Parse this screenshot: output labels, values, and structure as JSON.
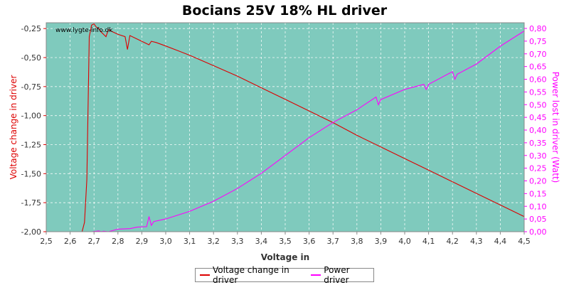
{
  "chart_data": {
    "type": "line",
    "title": "Bocians 25V 18% HL driver",
    "watermark": "www.lygte-info.dk",
    "xlabel": "Voltage in",
    "ylabel_left": "Voltage change in driver",
    "ylabel_right": "Power lost in driver (Watt)",
    "xlim": [
      2.5,
      4.5
    ],
    "ylim_left": [
      -2.0,
      -0.2
    ],
    "ylim_right": [
      0.0,
      0.8
    ],
    "x_ticks": [
      "2,5",
      "2,6",
      "2,7",
      "2,8",
      "2,9",
      "3,0",
      "3,1",
      "3,2",
      "3,3",
      "3,4",
      "3,5",
      "3,6",
      "3,7",
      "3,8",
      "3,9",
      "4,0",
      "4,1",
      "4,2",
      "4,3",
      "4,4",
      "4,5"
    ],
    "y_left_ticks": [
      "-0,25",
      "-0,50",
      "-0,75",
      "-1,00",
      "-1,25",
      "-1,50",
      "-1,75",
      "-2,00"
    ],
    "y_left_tick_values": [
      -0.25,
      -0.5,
      -0.75,
      -1.0,
      -1.25,
      -1.5,
      -1.75,
      -2.0
    ],
    "y_right_ticks": [
      "0,80",
      "0,75",
      "0,70",
      "0,65",
      "0,60",
      "0,55",
      "0,50",
      "0,45",
      "0,40",
      "0,35",
      "0,30",
      "0,25",
      "0,20",
      "0,15",
      "0,10",
      "0,05",
      "0,00"
    ],
    "y_right_tick_values": [
      0.8,
      0.75,
      0.7,
      0.65,
      0.6,
      0.55,
      0.5,
      0.45,
      0.4,
      0.35,
      0.3,
      0.25,
      0.2,
      0.15,
      0.1,
      0.05,
      0.0
    ],
    "grid": true,
    "legend_position": "bottom",
    "plot_background": "#7fcabd",
    "series": [
      {
        "name": "Voltage change in driver",
        "axis": "left",
        "color": "#dd0000",
        "x": [
          2.65,
          2.66,
          2.67,
          2.68,
          2.69,
          2.7,
          2.71,
          2.72,
          2.73,
          2.74,
          2.75,
          2.76,
          2.78,
          2.8,
          2.83,
          2.84,
          2.85,
          2.87,
          2.9,
          2.93,
          2.94,
          2.96,
          3.0,
          3.1,
          3.2,
          3.3,
          3.4,
          3.5,
          3.6,
          3.7,
          3.8,
          3.9,
          4.0,
          4.1,
          4.2,
          4.3,
          4.4,
          4.5
        ],
        "values": [
          -2.0,
          -1.92,
          -1.55,
          -0.32,
          -0.22,
          -0.21,
          -0.24,
          -0.25,
          -0.28,
          -0.3,
          -0.32,
          -0.26,
          -0.28,
          -0.3,
          -0.32,
          -0.43,
          -0.31,
          -0.33,
          -0.36,
          -0.39,
          -0.36,
          -0.37,
          -0.4,
          -0.48,
          -0.57,
          -0.66,
          -0.76,
          -0.86,
          -0.96,
          -1.06,
          -1.17,
          -1.27,
          -1.37,
          -1.47,
          -1.57,
          -1.67,
          -1.77,
          -1.87
        ]
      },
      {
        "name": "Power driver",
        "axis": "right",
        "color": "#ff00ff",
        "x": [
          2.69,
          2.72,
          2.73,
          2.74,
          2.76,
          2.8,
          2.85,
          2.88,
          2.92,
          2.93,
          2.94,
          2.95,
          3.0,
          3.1,
          3.2,
          3.3,
          3.4,
          3.5,
          3.6,
          3.7,
          3.8,
          3.88,
          3.89,
          3.9,
          4.0,
          4.08,
          4.09,
          4.1,
          4.2,
          4.21,
          4.22,
          4.3,
          4.4,
          4.5
        ],
        "values": [
          0.0,
          0.003,
          0.0,
          0.002,
          0.0,
          0.01,
          0.012,
          0.018,
          0.02,
          0.06,
          0.025,
          0.04,
          0.05,
          0.08,
          0.12,
          0.17,
          0.23,
          0.3,
          0.37,
          0.43,
          0.48,
          0.53,
          0.5,
          0.52,
          0.56,
          0.58,
          0.56,
          0.58,
          0.63,
          0.6,
          0.62,
          0.66,
          0.73,
          0.79
        ]
      }
    ]
  }
}
